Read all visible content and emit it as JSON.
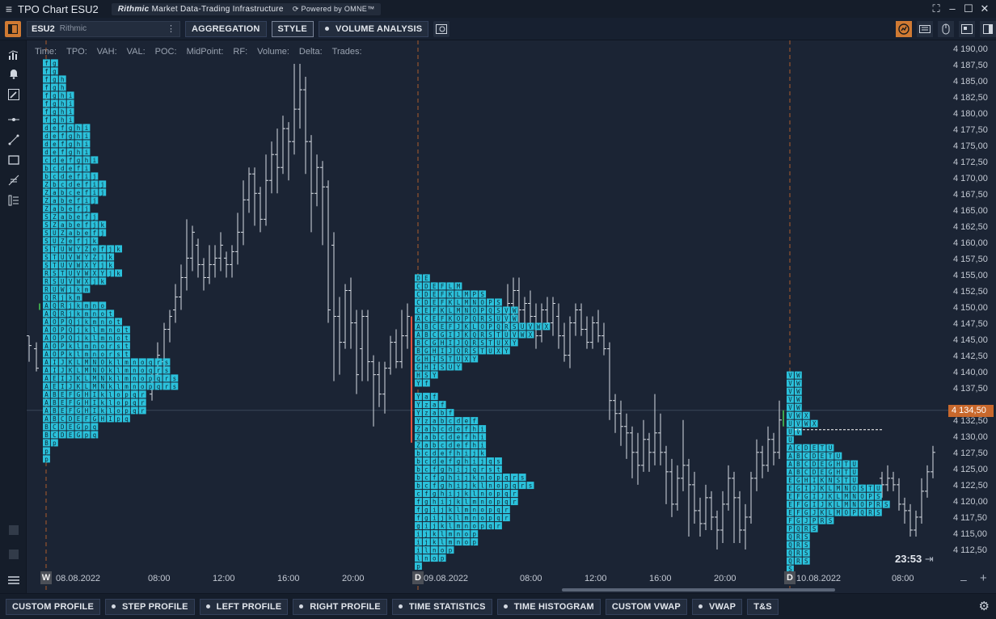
{
  "window": {
    "title": "TPO Chart ESU2",
    "brand_name": "Rithmic",
    "brand_tagline": "Market Data-Trading Infrastructure",
    "powered_by": "Powered by OMNE™"
  },
  "toolbar": {
    "symbol": "ESU2",
    "source": "Rithmic",
    "buttons": [
      {
        "label": "AGGREGATION",
        "dot": false
      },
      {
        "label": "STYLE",
        "dot": false
      },
      {
        "label": "VOLUME ANALYSIS",
        "dot": true
      }
    ]
  },
  "stats_labels": [
    "Time:",
    "TPO:",
    "VAH:",
    "VAL:",
    "POC:",
    "MidPoint:",
    "RF:",
    "Volume:",
    "Delta:",
    "Trades:"
  ],
  "price_axis": {
    "ticks": [
      "4 190,00",
      "4 187,50",
      "4 185,00",
      "4 182,50",
      "4 180,00",
      "4 177,50",
      "4 175,00",
      "4 172,50",
      "4 170,00",
      "4 167,50",
      "4 165,00",
      "4 162,50",
      "4 160,00",
      "4 157,50",
      "4 155,00",
      "4 152,50",
      "4 150,00",
      "4 147,50",
      "4 145,00",
      "4 142,50",
      "4 140,00",
      "4 137,50",
      "4 134,50",
      "4 132,50",
      "4 130,00",
      "4 127,50",
      "4 125,00",
      "4 122,50",
      "4 120,00",
      "4 117,50",
      "4 115,00",
      "4 112,50"
    ],
    "current_price": "4 134,50",
    "current_price_value": 4134.5,
    "max": 4190.0,
    "min": 4112.5
  },
  "time_axis": {
    "sessions": [
      {
        "badge": "W",
        "date": "08.08.2022"
      },
      {
        "badge": "D",
        "date": "09.08.2022"
      },
      {
        "badge": "D",
        "date": "10.08.2022"
      }
    ],
    "times_day1": [
      "08:00",
      "12:00",
      "16:00",
      "20:00"
    ],
    "times_day2": [
      "08:00",
      "12:00",
      "16:00",
      "20:00"
    ],
    "times_day3": [
      "08:00"
    ]
  },
  "timer": "23:53",
  "profiles": {
    "p1": [
      "fg",
      "fg",
      "fgh",
      "fgh",
      "fghi",
      "fghi",
      "fghi",
      "fghi",
      "defghi",
      "defghi",
      "defghi",
      "defghi",
      "cdefghi",
      "bcdefi",
      "bcdefij",
      "Zbcdefij",
      "Zabcefij",
      "Zabefij",
      "Zabefj",
      "SZabefj",
      "SZabefjk",
      "SUZabefj",
      "SUZefjk",
      "STUWYZefjk",
      "STUVWYZjk",
      "STUVWXYjk",
      "RSTUVWXYjk",
      "RSUVWXjk",
      "RUWjkm",
      "QRjkm",
      "AQRjkmno",
      "AQRjkmnot",
      "AOPQjkmnot",
      "AOPQjklmnot",
      "AOPQjklmnot",
      "AOPklmnorst",
      "AOPklmnorst",
      "AIJKLMNOklmnoqrs",
      "AIJKLMNOklmnoqrs",
      "AEIJKLMNklmnopqrs",
      "AEIJKLMNklmnopqrs",
      "ABEFGHIklopqr",
      "ABEFGHIklopqr",
      "ABEFGHIklopqr",
      "ABCDEFGHIpq",
      "BCDEGpq",
      "BCDEGpq",
      "Bp",
      "p",
      "p"
    ],
    "p2a": [
      "DE",
      "CDEFLM",
      "CDEFKLMPS",
      "CDEFKLMNOPS",
      "CEFKLMNOPQSVW",
      "ACEFKOPQRSUVW",
      "ABCEFJKLOPQRSUVWX",
      "ABCGIJKQRSTUVWX",
      "BCGHIJQRSTUXY",
      "BGHIJQRSTUXY",
      "GHISTUXY",
      "GHISUY",
      "HSY",
      "Yf"
    ],
    "p2b": [
      "Yaf",
      "Yzaf",
      "Yzabf",
      "Yzabcdef",
      "Zabcdefhi",
      "Zabcdefhi",
      "Zabcdefhi",
      "bcdefhijk",
      "bcdefghijqs",
      "bcfghijqrst",
      "bcfghijknopqrs",
      "bcfghijklnopqrs",
      "cfghijklnopqr",
      "fghijklmnopqr",
      "fgijklmnopqr",
      "fgijklmnopqr",
      "gijklmnopqr",
      "ijklmnop",
      "ijklmnop",
      "ilnop",
      "lnop",
      "p"
    ],
    "p3": [
      "VW",
      "VW",
      "VW",
      "VW",
      "VW",
      "VWX",
      "UVWX",
      "UV",
      "U",
      "ACDETU",
      "ABCDETU",
      "ABCDEGHTU",
      "ABCDEGHTU",
      "EGHIKNSTU",
      "EGIJKLMNOSTU",
      "EFGIJKLMNOPS",
      "EFGIJKLMNOPRS",
      "EFGJKLMOPQRS",
      "FGJPRS",
      "PQRS",
      "QRS",
      "QRS",
      "QRS",
      "QRS",
      "S"
    ]
  },
  "bottom_buttons": [
    {
      "label": "CUSTOM PROFILE",
      "dot": false
    },
    {
      "label": "STEP PROFILE",
      "dot": true
    },
    {
      "label": "LEFT PROFILE",
      "dot": true
    },
    {
      "label": "RIGHT PROFILE",
      "dot": true
    },
    {
      "label": "TIME STATISTICS",
      "dot": true
    },
    {
      "label": "TIME HISTOGRAM",
      "dot": true
    },
    {
      "label": "CUSTOM VWAP",
      "dot": false
    },
    {
      "label": "VWAP",
      "dot": true
    },
    {
      "label": "T&S",
      "dot": false
    }
  ],
  "colors": {
    "tpo_cell": "#2bc2dc",
    "tpo_text": "#0f2633",
    "accent_orange": "#d07a33",
    "session_line": "#c8682c",
    "bar_color": "#d7dce3"
  }
}
